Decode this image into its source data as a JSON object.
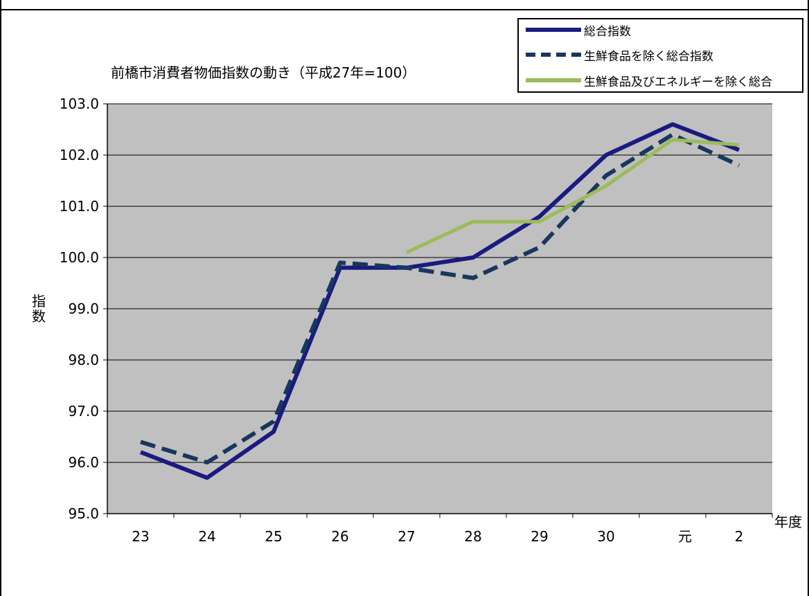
{
  "chart_data": {
    "type": "line",
    "title": "前橋市消費者物価指数の動き（平成27年=100）",
    "xlabel": "年度",
    "ylabel": "指数",
    "categories": [
      "23",
      "24",
      "25",
      "26",
      "27",
      "28",
      "29",
      "30",
      "元",
      "2"
    ],
    "ylim": [
      95.0,
      103.0
    ],
    "yticks": [
      "95.0",
      "96.0",
      "97.0",
      "98.0",
      "99.0",
      "100.0",
      "101.0",
      "102.0",
      "103.0"
    ],
    "grid": true,
    "legend": "top-right",
    "series": [
      {
        "name": "総合指数",
        "style": "solid",
        "color": "#1a1a80",
        "values": [
          96.2,
          95.7,
          96.6,
          99.8,
          99.8,
          100.0,
          100.8,
          102.0,
          102.6,
          102.1
        ]
      },
      {
        "name": "生鮮食品を除く総合指数",
        "style": "dashed",
        "color": "#17375e",
        "values": [
          96.4,
          96.0,
          96.8,
          99.9,
          99.8,
          99.6,
          100.2,
          101.6,
          102.4,
          101.8
        ]
      },
      {
        "name": "生鮮食品及びエネルギーを除く総合",
        "style": "solid",
        "color": "#9bbb59",
        "values": [
          null,
          null,
          null,
          null,
          100.1,
          100.7,
          100.7,
          101.4,
          102.3,
          102.2
        ]
      }
    ],
    "colors": {
      "plot_bg": "#c0c0c0",
      "grid": "#000000"
    }
  }
}
